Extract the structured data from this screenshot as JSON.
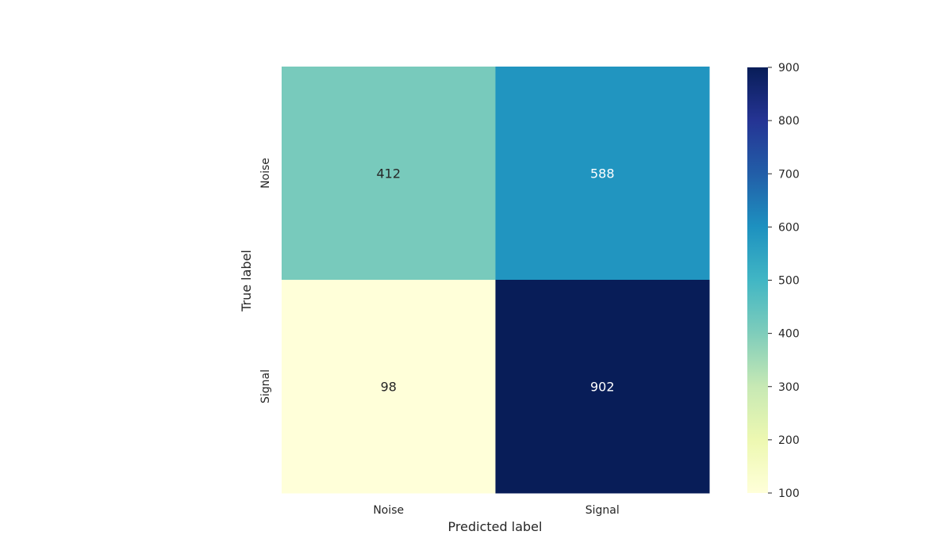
{
  "chart_data": {
    "type": "heatmap",
    "title": "",
    "xlabel": "Predicted label",
    "ylabel": "True label",
    "x_categories": [
      "Noise",
      "Signal"
    ],
    "y_categories": [
      "Noise",
      "Signal"
    ],
    "values": [
      [
        412,
        588
      ],
      [
        98,
        902
      ]
    ],
    "colorbar": {
      "colormap": "YlGnBu",
      "vmin": 100,
      "vmax": 900,
      "ticks": [
        100,
        200,
        300,
        400,
        500,
        600,
        700,
        800,
        900
      ]
    },
    "annotation_colors": {
      "dark": "#262626",
      "light": "#ffffff"
    }
  }
}
